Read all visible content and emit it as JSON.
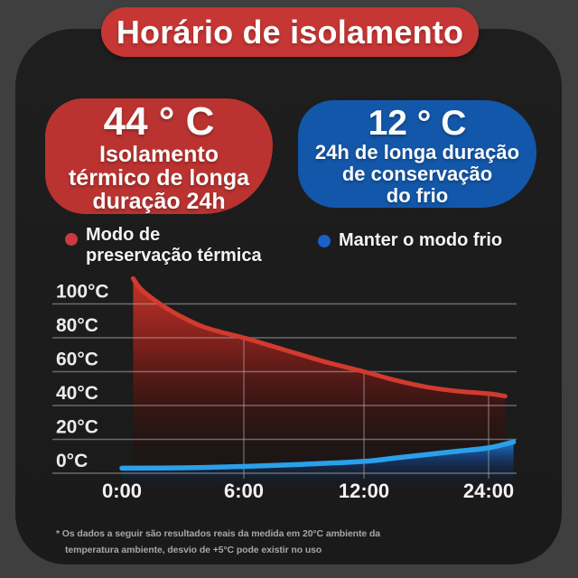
{
  "banner": {
    "title": "Horário de isolamento",
    "bg": "#c63634"
  },
  "hot_box": {
    "temp": "44 ° C",
    "lines": [
      "Isolamento",
      "térmico de longa",
      "duração 24h"
    ],
    "bg": "#ba3330"
  },
  "cold_box": {
    "temp": "12 ° C",
    "lines": [
      "24h de longa duração",
      "de conservação",
      "do frio"
    ],
    "bg": "#1357aa"
  },
  "legend": {
    "hot": {
      "line1": "Modo de",
      "line2": "preservação térmica",
      "dot_color": "#ca3a3e"
    },
    "cold": {
      "label": "Manter o modo frio",
      "dot_color": "#1b5fc8"
    }
  },
  "chart_data": {
    "type": "area",
    "title": "",
    "xlabel": "",
    "ylabel": "",
    "x_tick_labels": [
      "0:00",
      "6:00",
      "12:00",
      "24:00"
    ],
    "x_tick_hours": [
      0,
      6,
      12,
      24
    ],
    "y_tick_labels": [
      "100°C",
      "80°C",
      "60°C",
      "40°C",
      "20°C",
      "0°C"
    ],
    "y_tick_values": [
      100,
      80,
      60,
      40,
      20,
      0
    ],
    "ylim": [
      0,
      100
    ],
    "grid": true,
    "legend_position": "above-chart",
    "series": [
      {
        "name": "Modo de preservação térmica",
        "color": "#d23a2e",
        "points": [
          [
            0.55,
            115
          ],
          [
            1,
            108
          ],
          [
            2,
            99
          ],
          [
            3,
            92
          ],
          [
            4,
            86.5
          ],
          [
            5,
            83
          ],
          [
            6,
            80
          ],
          [
            8,
            73
          ],
          [
            10,
            66
          ],
          [
            12,
            60
          ],
          [
            15,
            55
          ],
          [
            18,
            51
          ],
          [
            21,
            48.5
          ],
          [
            24,
            47
          ],
          [
            25.6,
            45.5
          ]
        ]
      },
      {
        "name": "Manter o modo frio",
        "color": "#2ba0ea",
        "points": [
          [
            0,
            3
          ],
          [
            3,
            3.2
          ],
          [
            6,
            4
          ],
          [
            9,
            5.3
          ],
          [
            12,
            7
          ],
          [
            15,
            9
          ],
          [
            18,
            11
          ],
          [
            21,
            13
          ],
          [
            24,
            15
          ],
          [
            26.4,
            18.5
          ]
        ]
      }
    ],
    "values_at_ticks": {
      "hot": [
        115,
        80,
        60,
        47
      ],
      "cold": [
        3,
        4,
        7,
        15
      ]
    }
  },
  "footnote": {
    "line1": "* Os dados a seguir são resultados reais da medida em 20°C ambiente da",
    "line2": "temperatura ambiente, desvio de +5°C pode existir no uso"
  },
  "colors": {
    "background": "#3f3f3f",
    "card": "#1c1c1c",
    "banner_red": "#c63634",
    "box_red": "#ba3330",
    "box_blue": "#1357aa",
    "curve_red": "#d23a2e",
    "curve_blue": "#2ba0ea",
    "gridline": "#9a9a9a",
    "tick_text": "#ececec",
    "footnote_text": "#a6a6a6"
  }
}
